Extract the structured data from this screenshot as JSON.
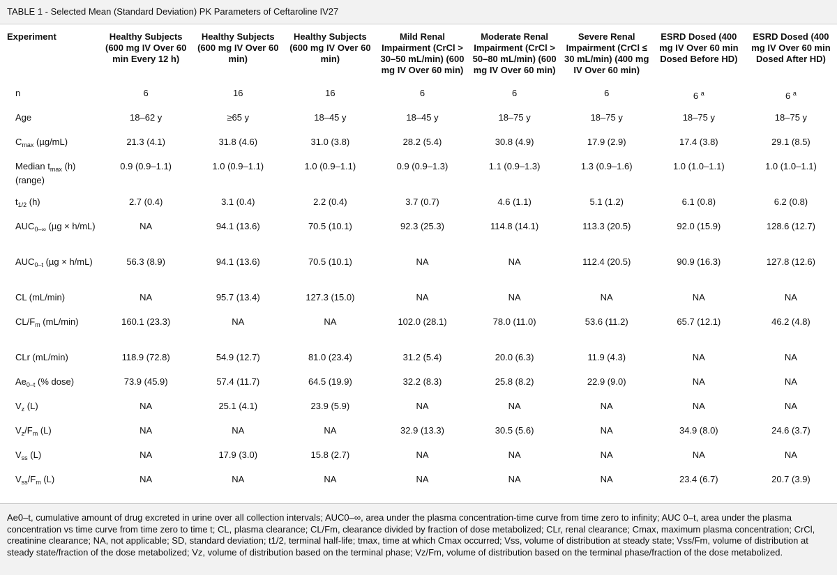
{
  "header": {
    "title": "TABLE 1 - Selected Mean (Standard Deviation) PK Parameters of Ceftaroline IV27"
  },
  "table": {
    "columns": [
      "Experiment",
      "Healthy Subjects (600 mg IV Over 60 min Every 12 h)",
      "Healthy Subjects (600 mg IV Over 60 min)",
      "Healthy Subjects (600 mg IV Over 60 min)",
      "Mild Renal Impairment (CrCl > 30–50 mL/min) (600 mg IV Over 60 min)",
      "Moderate Renal Impairment (CrCl > 50–80 mL/min) (600 mg IV Over 60 min)",
      "Severe Renal Impairment (CrCl ≤ 30 mL/min) (400 mg IV Over 60 min)",
      "ESRD Dosed (400 mg IV Over 60 min Dosed Before HD)",
      "ESRD Dosed (400 mg IV Over 60 min Dosed After HD)"
    ],
    "rows": [
      {
        "label": [
          {
            "text": "n"
          }
        ],
        "cells": [
          "6",
          "16",
          "16",
          "6",
          "6",
          "6",
          [
            {
              "text": "6 "
            },
            {
              "text": "a",
              "sup": true
            }
          ],
          [
            {
              "text": "6 "
            },
            {
              "text": "a",
              "sup": true
            }
          ]
        ]
      },
      {
        "label": [
          {
            "text": "Age"
          }
        ],
        "cells": [
          "18–62 y",
          "≥65 y",
          "18–45 y",
          "18–45 y",
          "18–75 y",
          "18–75 y",
          "18–75 y",
          "18–75 y"
        ]
      },
      {
        "label": [
          {
            "text": "C"
          },
          {
            "text": "max",
            "sub": true
          },
          {
            "text": " (µg/mL)"
          }
        ],
        "cells": [
          "21.3 (4.1)",
          "31.8 (4.6)",
          "31.0 (3.8)",
          "28.2 (5.4)",
          "30.8 (4.9)",
          "17.9 (2.9)",
          "17.4 (3.8)",
          "29.1 (8.5)"
        ]
      },
      {
        "label": [
          {
            "text": "Median t"
          },
          {
            "text": "max",
            "sub": true
          },
          {
            "text": " (h) (range)"
          }
        ],
        "cells": [
          "0.9 (0.9–1.1)",
          "1.0 (0.9–1.1)",
          "1.0 (0.9–1.1)",
          "0.9 (0.9–1.3)",
          "1.1 (0.9–1.3)",
          "1.3 (0.9–1.6)",
          "1.0 (1.0–1.1)",
          "1.0 (1.0–1.1)"
        ]
      },
      {
        "label": [
          {
            "text": "t"
          },
          {
            "text": "1/2",
            "sub": true
          },
          {
            "text": " (h)"
          }
        ],
        "cells": [
          "2.7 (0.4)",
          "3.1 (0.4)",
          "2.2 (0.4)",
          "3.7 (0.7)",
          "4.6 (1.1)",
          "5.1 (1.2)",
          "6.1 (0.8)",
          "6.2 (0.8)"
        ]
      },
      {
        "label": [
          {
            "text": "AUC"
          },
          {
            "text": "0–∞",
            "sub": true
          },
          {
            "text": " (µg × h/mL)"
          }
        ],
        "cells": [
          "NA",
          "94.1 (13.6)",
          "70.5 (10.1)",
          "92.3 (25.3)",
          "114.8 (14.1)",
          "113.3 (20.5)",
          "92.0 (15.9)",
          "128.6 (12.7)"
        ]
      },
      {
        "label": [
          {
            "text": "AUC"
          },
          {
            "text": "0–t",
            "sub": true
          },
          {
            "text": " (µg × h/mL)"
          }
        ],
        "cells": [
          "56.3 (8.9)",
          "94.1 (13.6)",
          "70.5 (10.1)",
          "NA",
          "NA",
          "112.4 (20.5)",
          "90.9 (16.3)",
          "127.8 (12.6)"
        ]
      },
      {
        "label": [
          {
            "text": "CL (mL/min)"
          }
        ],
        "cells": [
          "NA",
          "95.7 (13.4)",
          "127.3 (15.0)",
          "NA",
          "NA",
          "NA",
          "NA",
          "NA"
        ]
      },
      {
        "label": [
          {
            "text": "CL/F"
          },
          {
            "text": "m",
            "sub": true
          },
          {
            "text": " (mL/min)"
          }
        ],
        "cells": [
          "160.1 (23.3)",
          "NA",
          "NA",
          "102.0 (28.1)",
          "78.0 (11.0)",
          "53.6 (11.2)",
          "65.7 (12.1)",
          "46.2 (4.8)"
        ]
      },
      {
        "label": [
          {
            "text": "CLr (mL/min)"
          }
        ],
        "cells": [
          "118.9 (72.8)",
          "54.9 (12.7)",
          "81.0 (23.4)",
          "31.2 (5.4)",
          "20.0 (6.3)",
          "11.9 (4.3)",
          "NA",
          "NA"
        ]
      },
      {
        "label": [
          {
            "text": "Ae"
          },
          {
            "text": "0–t",
            "sub": true
          },
          {
            "text": " (% dose)"
          }
        ],
        "cells": [
          "73.9 (45.9)",
          "57.4 (11.7)",
          "64.5 (19.9)",
          "32.2 (8.3)",
          "25.8 (8.2)",
          "22.9 (9.0)",
          "NA",
          "NA"
        ]
      },
      {
        "label": [
          {
            "text": "V"
          },
          {
            "text": "z",
            "sub": true
          },
          {
            "text": " (L)"
          }
        ],
        "cells": [
          "NA",
          "25.1 (4.1)",
          "23.9 (5.9)",
          "NA",
          "NA",
          "NA",
          "NA",
          "NA"
        ]
      },
      {
        "label": [
          {
            "text": "V"
          },
          {
            "text": "z",
            "sub": true
          },
          {
            "text": "/F"
          },
          {
            "text": "m",
            "sub": true
          },
          {
            "text": " (L)"
          }
        ],
        "cells": [
          "NA",
          "NA",
          "NA",
          "32.9 (13.3)",
          "30.5 (5.6)",
          "NA",
          "34.9 (8.0)",
          "24.6 (3.7)"
        ]
      },
      {
        "label": [
          {
            "text": "V"
          },
          {
            "text": "ss",
            "sub": true
          },
          {
            "text": " (L)"
          }
        ],
        "cells": [
          "NA",
          "17.9 (3.0)",
          "15.8 (2.7)",
          "NA",
          "NA",
          "NA",
          "NA",
          "NA"
        ]
      },
      {
        "label": [
          {
            "text": "V"
          },
          {
            "text": "ss",
            "sub": true
          },
          {
            "text": "/F"
          },
          {
            "text": "m",
            "sub": true
          },
          {
            "text": " (L)"
          }
        ],
        "cells": [
          "NA",
          "NA",
          "NA",
          "NA",
          "NA",
          "NA",
          "23.4 (6.7)",
          "20.7 (3.9)"
        ]
      }
    ]
  },
  "footnote": "Ae0–t, cumulative amount of drug excreted in urine over all collection intervals; AUC0–∞, area under the plasma concentration-time curve from time zero to infinity; AUC 0–t, area under the plasma concentration vs time curve from time zero to time t; CL, plasma clearance; CL/Fm, clearance divided by fraction of dose metabolized; CLr, renal clearance; Cmax, maximum plasma concentration; CrCl, creatinine clearance; NA, not applicable; SD, standard deviation; t1/2, terminal half-life; tmax, time at which Cmax occurred; Vss, volume of distribution at steady state; Vss/Fm, volume of distribution at steady state/fraction of the dose metabolized; Vz, volume of distribution based on the terminal phase; Vz/Fm, volume of distribution based on the terminal phase/fraction of the dose metabolized."
}
